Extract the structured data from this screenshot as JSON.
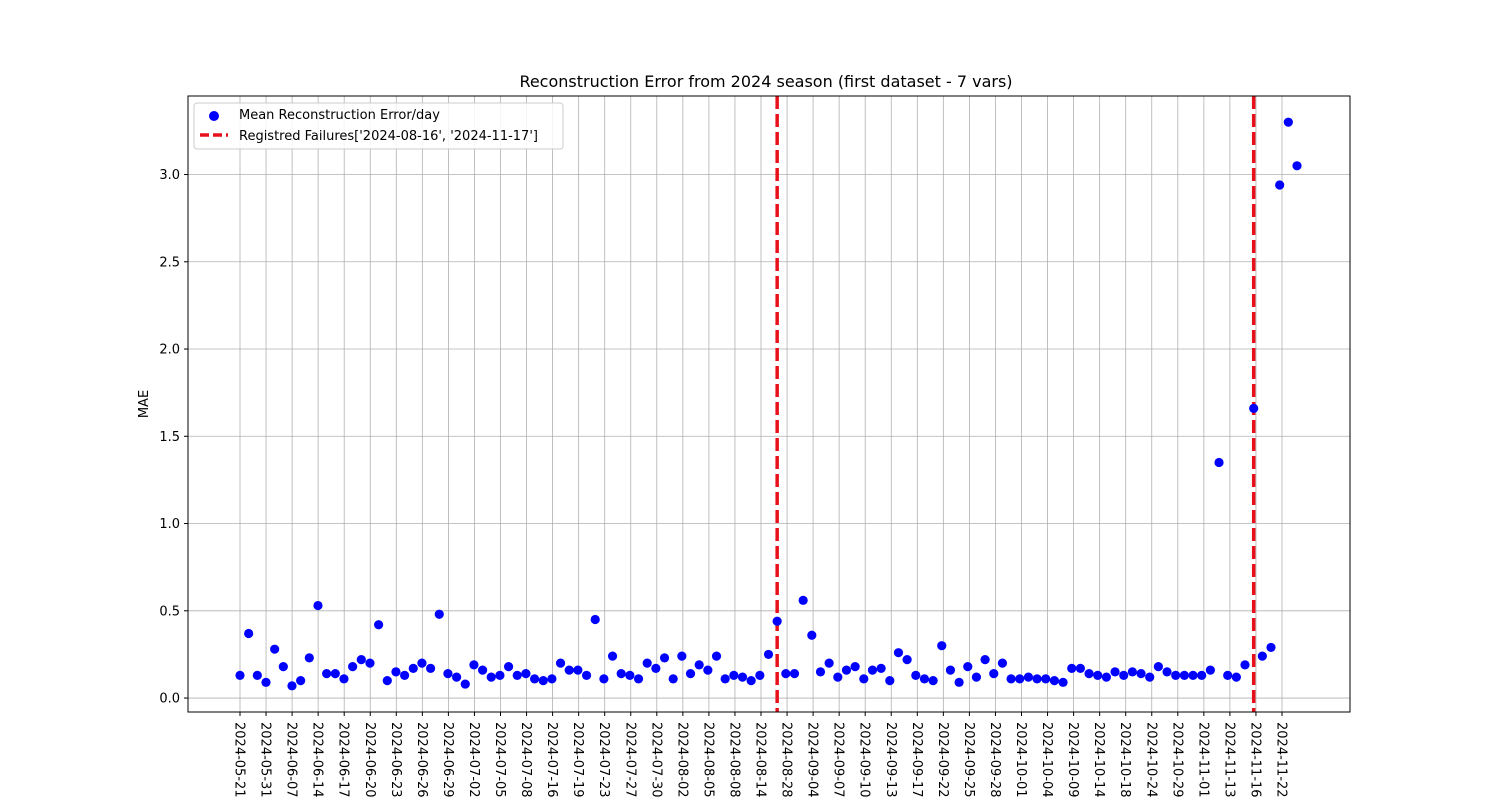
{
  "chart_data": {
    "type": "scatter",
    "title": "Reconstruction Error from 2024 season (first dataset -  7 vars)",
    "xlabel": "",
    "ylabel": "MAE",
    "ylim": [
      -0.08,
      3.45
    ],
    "yticks": [
      0.0,
      0.5,
      1.0,
      1.5,
      2.0,
      2.5,
      3.0
    ],
    "ytick_labels": [
      "0.0",
      "0.5",
      "1.0",
      "1.5",
      "2.0",
      "2.5",
      "3.0"
    ],
    "xtick_labels": [
      "2024-05-21",
      "2024-05-31",
      "2024-06-07",
      "2024-06-14",
      "2024-06-17",
      "2024-06-20",
      "2024-06-23",
      "2024-06-26",
      "2024-06-29",
      "2024-07-02",
      "2024-07-05",
      "2024-07-08",
      "2024-07-16",
      "2024-07-19",
      "2024-07-23",
      "2024-07-27",
      "2024-07-30",
      "2024-08-02",
      "2024-08-05",
      "2024-08-08",
      "2024-08-14",
      "2024-08-28",
      "2024-09-04",
      "2024-09-07",
      "2024-09-10",
      "2024-09-13",
      "2024-09-17",
      "2024-09-22",
      "2024-09-25",
      "2024-09-28",
      "2024-10-01",
      "2024-10-04",
      "2024-10-09",
      "2024-10-14",
      "2024-10-18",
      "2024-10-24",
      "2024-10-29",
      "2024-11-01",
      "2024-11-13",
      "2024-11-16",
      "2024-11-22"
    ],
    "grid": true,
    "legend_position": "top-left",
    "series": [
      {
        "name": "Mean Reconstruction Error/day",
        "color": "#0000ff",
        "values": [
          0.13,
          0.37,
          0.13,
          0.09,
          0.28,
          0.18,
          0.07,
          0.1,
          0.23,
          0.53,
          0.14,
          0.14,
          0.11,
          0.18,
          0.22,
          0.2,
          0.42,
          0.1,
          0.15,
          0.13,
          0.17,
          0.2,
          0.17,
          0.48,
          0.14,
          0.12,
          0.08,
          0.19,
          0.16,
          0.12,
          0.13,
          0.18,
          0.13,
          0.14,
          0.11,
          0.1,
          0.11,
          0.2,
          0.16,
          0.16,
          0.13,
          0.45,
          0.11,
          0.24,
          0.14,
          0.13,
          0.11,
          0.2,
          0.17,
          0.23,
          0.11,
          0.24,
          0.14,
          0.19,
          0.16,
          0.24,
          0.11,
          0.13,
          0.12,
          0.1,
          0.13,
          0.25,
          0.44,
          0.14,
          0.14,
          0.56,
          0.36,
          0.15,
          0.2,
          0.12,
          0.16,
          0.18,
          0.11,
          0.16,
          0.17,
          0.1,
          0.26,
          0.22,
          0.13,
          0.11,
          0.1,
          0.3,
          0.16,
          0.09,
          0.18,
          0.12,
          0.22,
          0.14,
          0.2,
          0.11,
          0.11,
          0.12,
          0.11,
          0.11,
          0.1,
          0.09,
          0.17,
          0.17,
          0.14,
          0.13,
          0.12,
          0.15,
          0.13,
          0.15,
          0.14,
          0.12,
          0.18,
          0.15,
          0.13,
          0.13,
          0.13,
          0.13,
          0.16,
          1.35,
          0.13,
          0.12,
          0.19,
          1.66,
          0.24,
          0.29,
          2.94,
          3.3,
          3.05
        ]
      },
      {
        "name": "Registred Failures['2024-08-16', '2024-11-17']",
        "color": "#e8111b",
        "style": "dashed",
        "failure_indices": [
          62,
          117
        ]
      }
    ]
  }
}
